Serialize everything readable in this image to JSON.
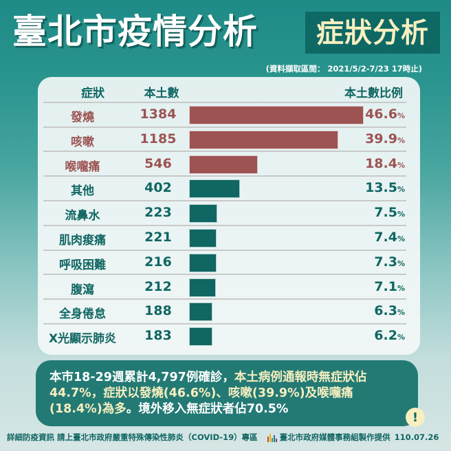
{
  "header": {
    "title": "臺北市疫情分析",
    "badge": "症狀分析",
    "date_range": "(資料擷取區間： 2021/5/2-7/23 17時止)"
  },
  "table": {
    "columns": {
      "symptom": "症狀",
      "count": "本土數",
      "ratio": "本土數比例"
    },
    "percent_sign": "%",
    "rows": [
      {
        "name": "發燒",
        "count": "1384",
        "pct": "46.6",
        "color": "red"
      },
      {
        "name": "咳嗽",
        "count": "1185",
        "pct": "39.9",
        "color": "red"
      },
      {
        "name": "喉嚨痛",
        "count": "546",
        "pct": "18.4",
        "color": "red"
      },
      {
        "name": "其他",
        "count": "402",
        "pct": "13.5",
        "color": "teal"
      },
      {
        "name": "流鼻水",
        "count": "223",
        "pct": "7.5",
        "color": "teal"
      },
      {
        "name": "肌肉痠痛",
        "count": "221",
        "pct": "7.4",
        "color": "teal"
      },
      {
        "name": "呼吸困難",
        "count": "216",
        "pct": "7.3",
        "color": "teal"
      },
      {
        "name": "腹瀉",
        "count": "212",
        "pct": "7.1",
        "color": "teal"
      },
      {
        "name": "全身倦怠",
        "count": "188",
        "pct": "6.3",
        "color": "teal"
      },
      {
        "name": "X光顯示肺炎",
        "count": "183",
        "pct": "6.2",
        "color": "teal"
      }
    ]
  },
  "summary": {
    "part1": "本市18-29週累計4,797例確診，",
    "part2_highlight": "本土病例通報時無症狀佔44.7%，症狀以發燒(46.6%)、咳嗽(39.9%)及喉嚨痛(18.4%)為多",
    "part3": "。境外移入無症狀者佔70.5%",
    "alert_icon": "!"
  },
  "footer": {
    "left": "詳細防疫資訊 請上臺北市政府嚴重特殊傳染性肺炎（COVID-19）專區",
    "credit": "臺北市政府媒體事務組製作提供",
    "date": "110.07.26"
  },
  "colors": {
    "red": "#9c5352",
    "teal": "#0f6662",
    "badge_bg": "#0e6864",
    "badge_text": "#f7efbf",
    "summary_bg": "#237a75"
  },
  "chart_data": {
    "type": "bar",
    "orientation": "horizontal",
    "title": "臺北市疫情分析 症狀分析",
    "subtitle": "(資料擷取區間： 2021/5/2-7/23 17時止)",
    "categories": [
      "發燒",
      "咳嗽",
      "喉嚨痛",
      "其他",
      "流鼻水",
      "肌肉痠痛",
      "呼吸困難",
      "腹瀉",
      "全身倦怠",
      "X光顯示肺炎"
    ],
    "series": [
      {
        "name": "本土數",
        "values": [
          1384,
          1185,
          546,
          402,
          223,
          221,
          216,
          212,
          188,
          183
        ]
      },
      {
        "name": "本土數比例(%)",
        "values": [
          46.6,
          39.9,
          18.4,
          13.5,
          7.5,
          7.4,
          7.3,
          7.1,
          6.3,
          6.2
        ]
      }
    ],
    "highlighted_categories": [
      "發燒",
      "咳嗽",
      "喉嚨痛"
    ],
    "xlabel": "",
    "ylabel": "症狀",
    "grid": false
  }
}
